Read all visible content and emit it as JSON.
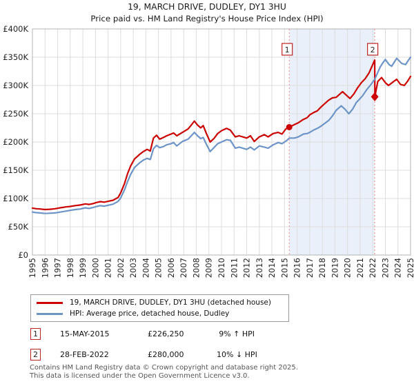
{
  "title": "19, MARCH DRIVE, DUDLEY, DY1 3HU",
  "subtitle": "Price paid vs. HM Land Registry's House Price Index (HPI)",
  "colors": {
    "property_line": "#cc0000",
    "hpi_line": "#6d94c7",
    "shading": "#eaf0fa",
    "dashed_marker_line": "#ee8888",
    "annotation_box_border": "#bb2222",
    "gridline": "#dcdcdc",
    "plot_border": "#b3b3b3"
  },
  "chart_data": {
    "type": "line",
    "unit": "GBP thousands",
    "xlim": [
      1995,
      2025
    ],
    "ylim": [
      0,
      400
    ],
    "grid": true,
    "legend_position": "below",
    "x_ticks": [
      1995,
      1996,
      1997,
      1998,
      1999,
      2000,
      2001,
      2002,
      2003,
      2004,
      2005,
      2006,
      2007,
      2008,
      2009,
      2010,
      2011,
      2012,
      2013,
      2014,
      2015,
      2016,
      2017,
      2018,
      2019,
      2020,
      2021,
      2022,
      2023,
      2024,
      2025
    ],
    "y_ticks": [
      {
        "value": 0,
        "label": "£0"
      },
      {
        "value": 50,
        "label": "£50K"
      },
      {
        "value": 100,
        "label": "£100K"
      },
      {
        "value": 150,
        "label": "£150K"
      },
      {
        "value": 200,
        "label": "£200K"
      },
      {
        "value": 250,
        "label": "£250K"
      },
      {
        "value": 300,
        "label": "£300K"
      },
      {
        "value": 350,
        "label": "£350K"
      },
      {
        "value": 400,
        "label": "£400K"
      }
    ],
    "shaded_region": {
      "from_year": 2015.375,
      "to_year": 2022.16,
      "color": "#eaf0fa"
    },
    "sale_markers": [
      {
        "num": "1",
        "year": 2015.375,
        "value": 226.25,
        "shape": "circle"
      },
      {
        "num": "2",
        "year": 2022.16,
        "value": 280,
        "shape": "diamond"
      }
    ],
    "series": [
      {
        "name": "19, MARCH DRIVE, DUDLEY, DY1 3HU (detached house)",
        "color": "#cc0000",
        "points": [
          [
            1995,
            83
          ],
          [
            1995.3,
            82
          ],
          [
            1995.6,
            81.5
          ],
          [
            1996,
            80.5
          ],
          [
            1996.4,
            81
          ],
          [
            1996.8,
            82
          ],
          [
            1997.2,
            83.5
          ],
          [
            1997.6,
            85
          ],
          [
            1998,
            86
          ],
          [
            1998.4,
            87.5
          ],
          [
            1998.8,
            88.5
          ],
          [
            1999.2,
            90.5
          ],
          [
            1999.5,
            89.5
          ],
          [
            1999.8,
            91
          ],
          [
            2000.1,
            93
          ],
          [
            2000.4,
            94.5
          ],
          [
            2000.7,
            93.5
          ],
          [
            2001,
            95
          ],
          [
            2001.4,
            97
          ],
          [
            2001.8,
            102
          ],
          [
            2002,
            110
          ],
          [
            2002.3,
            126
          ],
          [
            2002.55,
            144
          ],
          [
            2002.8,
            158
          ],
          [
            2003.1,
            170
          ],
          [
            2003.5,
            178
          ],
          [
            2003.8,
            183
          ],
          [
            2004.1,
            187
          ],
          [
            2004.35,
            184
          ],
          [
            2004.6,
            207
          ],
          [
            2004.85,
            212
          ],
          [
            2005.1,
            205
          ],
          [
            2005.4,
            208
          ],
          [
            2005.65,
            211
          ],
          [
            2006,
            214
          ],
          [
            2006.2,
            216
          ],
          [
            2006.45,
            211
          ],
          [
            2006.9,
            217
          ],
          [
            2007.35,
            223
          ],
          [
            2007.6,
            230
          ],
          [
            2007.85,
            237
          ],
          [
            2008.1,
            230
          ],
          [
            2008.35,
            225
          ],
          [
            2008.55,
            229
          ],
          [
            2008.8,
            215
          ],
          [
            2009.1,
            200
          ],
          [
            2009.4,
            206
          ],
          [
            2009.7,
            215
          ],
          [
            2010,
            220
          ],
          [
            2010.4,
            224
          ],
          [
            2010.7,
            221
          ],
          [
            2011.1,
            209
          ],
          [
            2011.4,
            211
          ],
          [
            2012,
            207
          ],
          [
            2012.3,
            211
          ],
          [
            2012.6,
            201
          ],
          [
            2013,
            209
          ],
          [
            2013.4,
            213
          ],
          [
            2013.7,
            209
          ],
          [
            2014.1,
            215
          ],
          [
            2014.5,
            217
          ],
          [
            2014.8,
            214
          ],
          [
            2015.1,
            223
          ],
          [
            2015.375,
            226.25
          ],
          [
            2015.8,
            231
          ],
          [
            2016.1,
            234
          ],
          [
            2016.5,
            240
          ],
          [
            2016.8,
            243
          ],
          [
            2017,
            248
          ],
          [
            2017.3,
            252
          ],
          [
            2017.6,
            255
          ],
          [
            2017.9,
            262
          ],
          [
            2018.2,
            268
          ],
          [
            2018.5,
            274
          ],
          [
            2018.8,
            278
          ],
          [
            2019.1,
            279
          ],
          [
            2019.4,
            285
          ],
          [
            2019.6,
            289
          ],
          [
            2019.9,
            283
          ],
          [
            2020.2,
            277
          ],
          [
            2020.5,
            285
          ],
          [
            2020.8,
            296
          ],
          [
            2021.1,
            305
          ],
          [
            2021.4,
            312
          ],
          [
            2021.7,
            322
          ],
          [
            2022,
            337
          ],
          [
            2022.16,
            345
          ],
          [
            2022.17,
            280
          ],
          [
            2022.4,
            307
          ],
          [
            2022.7,
            314
          ],
          [
            2023,
            305
          ],
          [
            2023.25,
            300
          ],
          [
            2023.6,
            306
          ],
          [
            2023.9,
            311
          ],
          [
            2024.2,
            302
          ],
          [
            2024.5,
            300
          ],
          [
            2024.75,
            307
          ],
          [
            2025,
            316
          ]
        ]
      },
      {
        "name": "HPI: Average price, detached house, Dudley",
        "color": "#6d94c7",
        "points": [
          [
            1995,
            76
          ],
          [
            1995.3,
            75
          ],
          [
            1995.6,
            74.5
          ],
          [
            1996,
            73.5
          ],
          [
            1996.4,
            74
          ],
          [
            1996.8,
            74.5
          ],
          [
            1997.2,
            76
          ],
          [
            1997.6,
            77.5
          ],
          [
            1998,
            79
          ],
          [
            1998.4,
            80.5
          ],
          [
            1998.8,
            81.5
          ],
          [
            1999.2,
            83.5
          ],
          [
            1999.5,
            82.5
          ],
          [
            1999.8,
            84
          ],
          [
            2000.1,
            86
          ],
          [
            2000.4,
            87.5
          ],
          [
            2000.7,
            86.5
          ],
          [
            2001,
            88
          ],
          [
            2001.4,
            90
          ],
          [
            2001.8,
            95
          ],
          [
            2002,
            101
          ],
          [
            2002.3,
            115
          ],
          [
            2002.55,
            130
          ],
          [
            2002.8,
            143
          ],
          [
            2003.1,
            155
          ],
          [
            2003.5,
            163
          ],
          [
            2003.8,
            168
          ],
          [
            2004.1,
            171
          ],
          [
            2004.35,
            169
          ],
          [
            2004.6,
            188
          ],
          [
            2004.85,
            194
          ],
          [
            2005.1,
            190
          ],
          [
            2005.4,
            192
          ],
          [
            2005.65,
            195
          ],
          [
            2006,
            197
          ],
          [
            2006.2,
            199
          ],
          [
            2006.45,
            193
          ],
          [
            2006.9,
            201
          ],
          [
            2007.35,
            205
          ],
          [
            2007.6,
            211
          ],
          [
            2007.85,
            217
          ],
          [
            2008.1,
            211
          ],
          [
            2008.35,
            206
          ],
          [
            2008.55,
            208
          ],
          [
            2008.8,
            196
          ],
          [
            2009.1,
            183
          ],
          [
            2009.4,
            190
          ],
          [
            2009.7,
            197
          ],
          [
            2010,
            200
          ],
          [
            2010.4,
            204
          ],
          [
            2010.7,
            203
          ],
          [
            2011.1,
            189
          ],
          [
            2011.4,
            191
          ],
          [
            2012,
            187
          ],
          [
            2012.3,
            191
          ],
          [
            2012.6,
            186
          ],
          [
            2013,
            193
          ],
          [
            2013.4,
            191
          ],
          [
            2013.7,
            189
          ],
          [
            2014.1,
            195
          ],
          [
            2014.5,
            199
          ],
          [
            2014.8,
            197
          ],
          [
            2015.2,
            203
          ],
          [
            2015.375,
            207
          ],
          [
            2015.8,
            207
          ],
          [
            2016.1,
            209
          ],
          [
            2016.5,
            214
          ],
          [
            2016.8,
            215
          ],
          [
            2017,
            217
          ],
          [
            2017.3,
            221
          ],
          [
            2017.6,
            224
          ],
          [
            2017.9,
            228
          ],
          [
            2018.2,
            233
          ],
          [
            2018.5,
            238
          ],
          [
            2018.8,
            246
          ],
          [
            2019.1,
            256
          ],
          [
            2019.5,
            264
          ],
          [
            2019.8,
            258
          ],
          [
            2020.1,
            250
          ],
          [
            2020.4,
            258
          ],
          [
            2020.7,
            270
          ],
          [
            2021,
            277
          ],
          [
            2021.2,
            282
          ],
          [
            2021.5,
            292
          ],
          [
            2021.8,
            300
          ],
          [
            2022.16,
            311
          ],
          [
            2022.4,
            323
          ],
          [
            2022.6,
            333
          ],
          [
            2022.8,
            340
          ],
          [
            2023,
            346
          ],
          [
            2023.3,
            337
          ],
          [
            2023.5,
            334
          ],
          [
            2023.9,
            348
          ],
          [
            2024.3,
            339
          ],
          [
            2024.6,
            337
          ],
          [
            2024.9,
            347
          ],
          [
            2025,
            350
          ]
        ]
      }
    ]
  },
  "legend": {
    "items": [
      {
        "label": "19, MARCH DRIVE, DUDLEY, DY1 3HU (detached house)",
        "color": "#cc0000"
      },
      {
        "label": "HPI: Average price, detached house, Dudley",
        "color": "#6d94c7"
      }
    ]
  },
  "sales": [
    {
      "num": "1",
      "date": "15-MAY-2015",
      "price": "£226,250",
      "hpi": "9% ↑ HPI"
    },
    {
      "num": "2",
      "date": "28-FEB-2022",
      "price": "£280,000",
      "hpi": "10% ↓ HPI"
    }
  ],
  "footer": {
    "line1": "Contains HM Land Registry data © Crown copyright and database right 2025.",
    "line2": "This data is licensed under the Open Government Licence v3.0."
  }
}
